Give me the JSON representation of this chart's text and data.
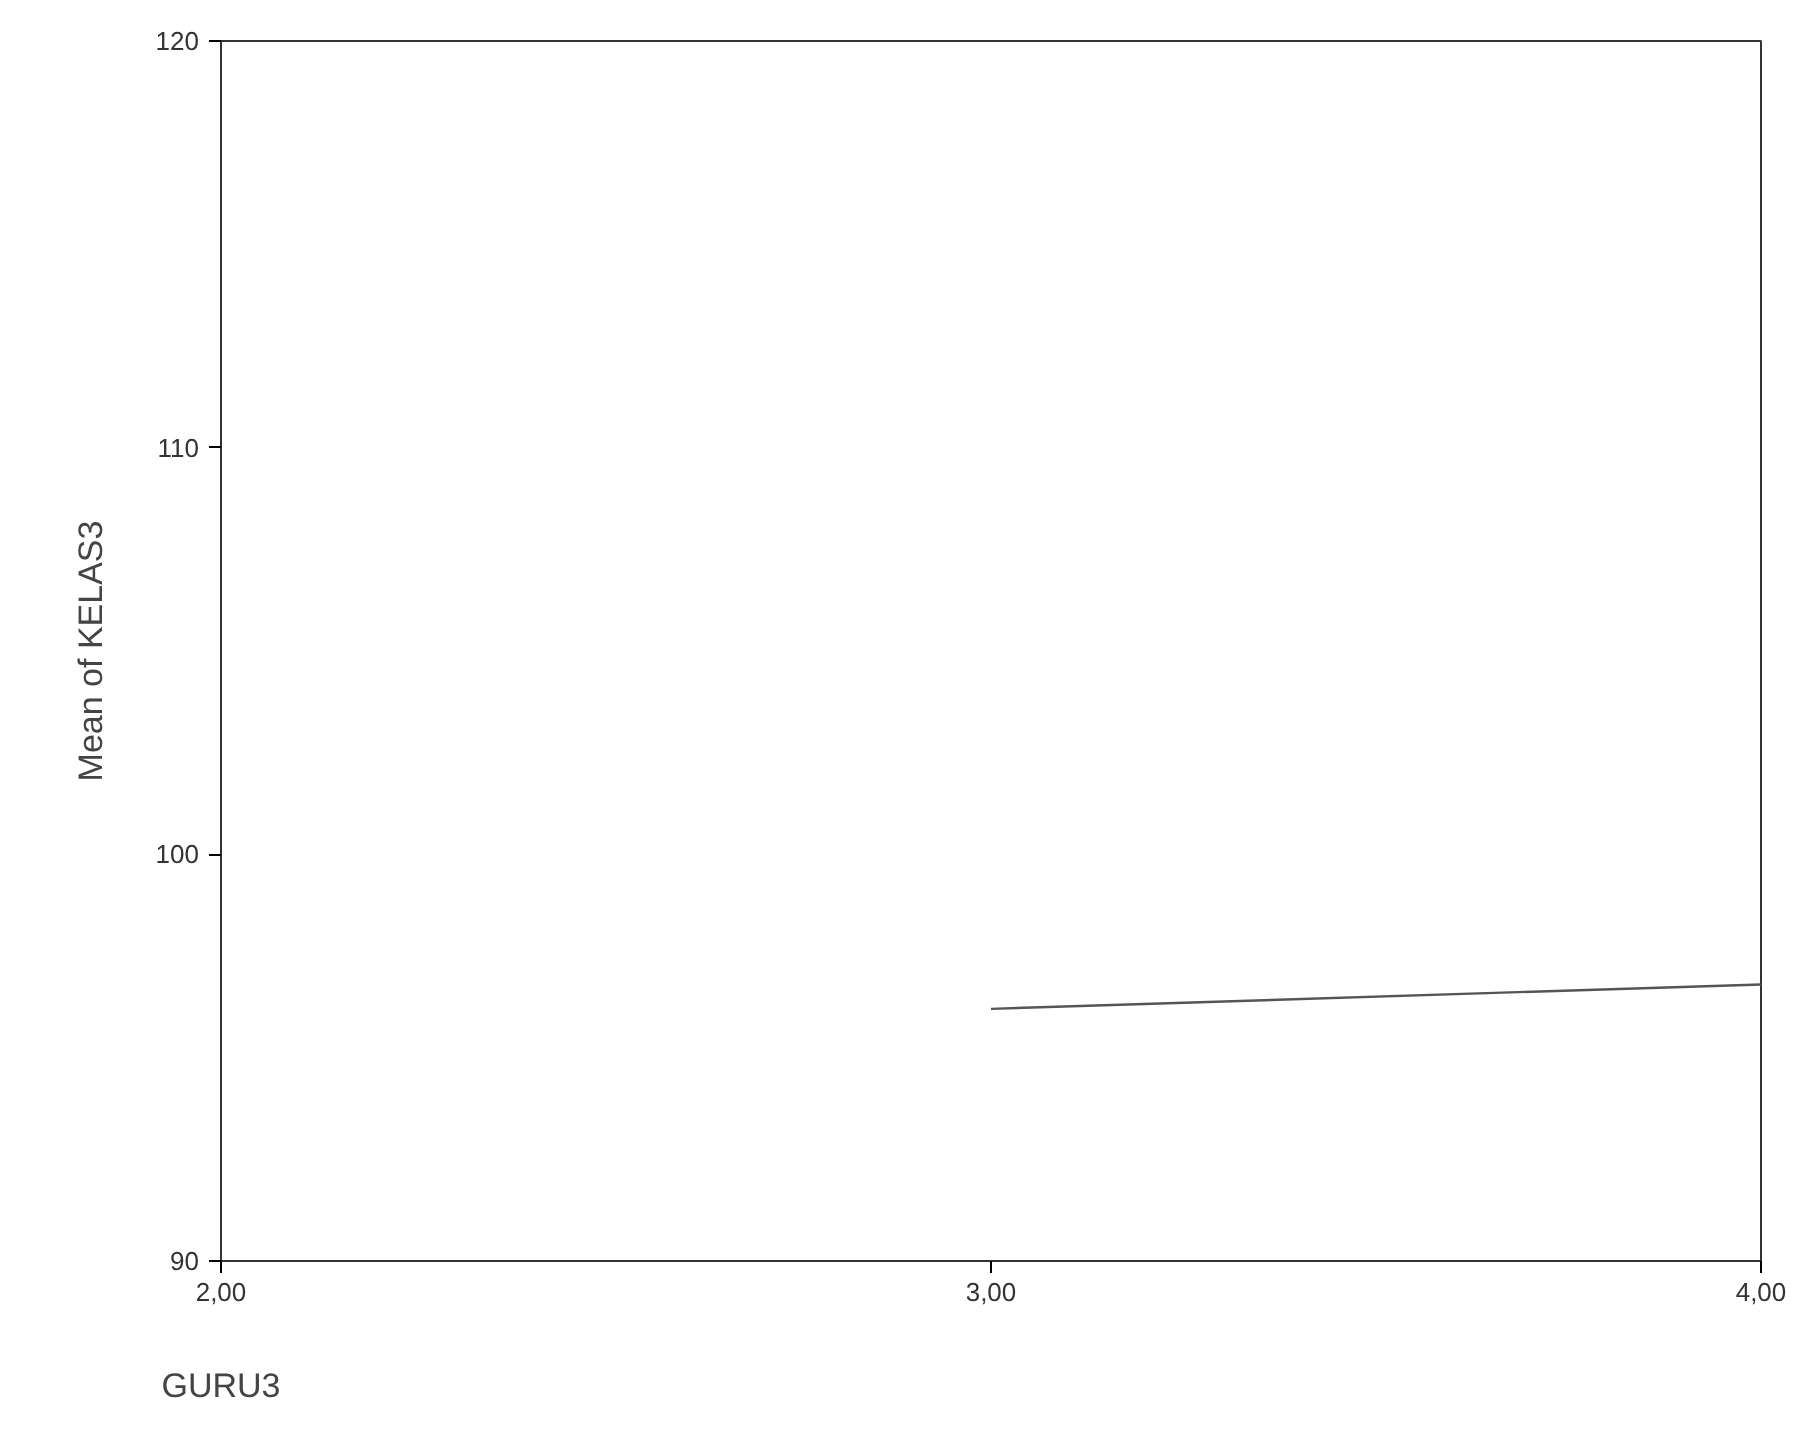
{
  "chart_data": {
    "type": "line",
    "xlabel": "GURU3",
    "ylabel": "Mean of KELAS3",
    "x": [
      3,
      4
    ],
    "values": [
      96.2,
      96.8
    ],
    "color": "#555555",
    "xlim": [
      2,
      4
    ],
    "xticks": [
      {
        "value": 2,
        "label": "2,00"
      },
      {
        "value": 3,
        "label": "3,00"
      },
      {
        "value": 4,
        "label": "4,00"
      }
    ],
    "ylim": [
      90,
      120
    ],
    "yticks": [
      90,
      100,
      110,
      120
    ],
    "grid": false,
    "marker": "none",
    "line_style": "solid"
  }
}
